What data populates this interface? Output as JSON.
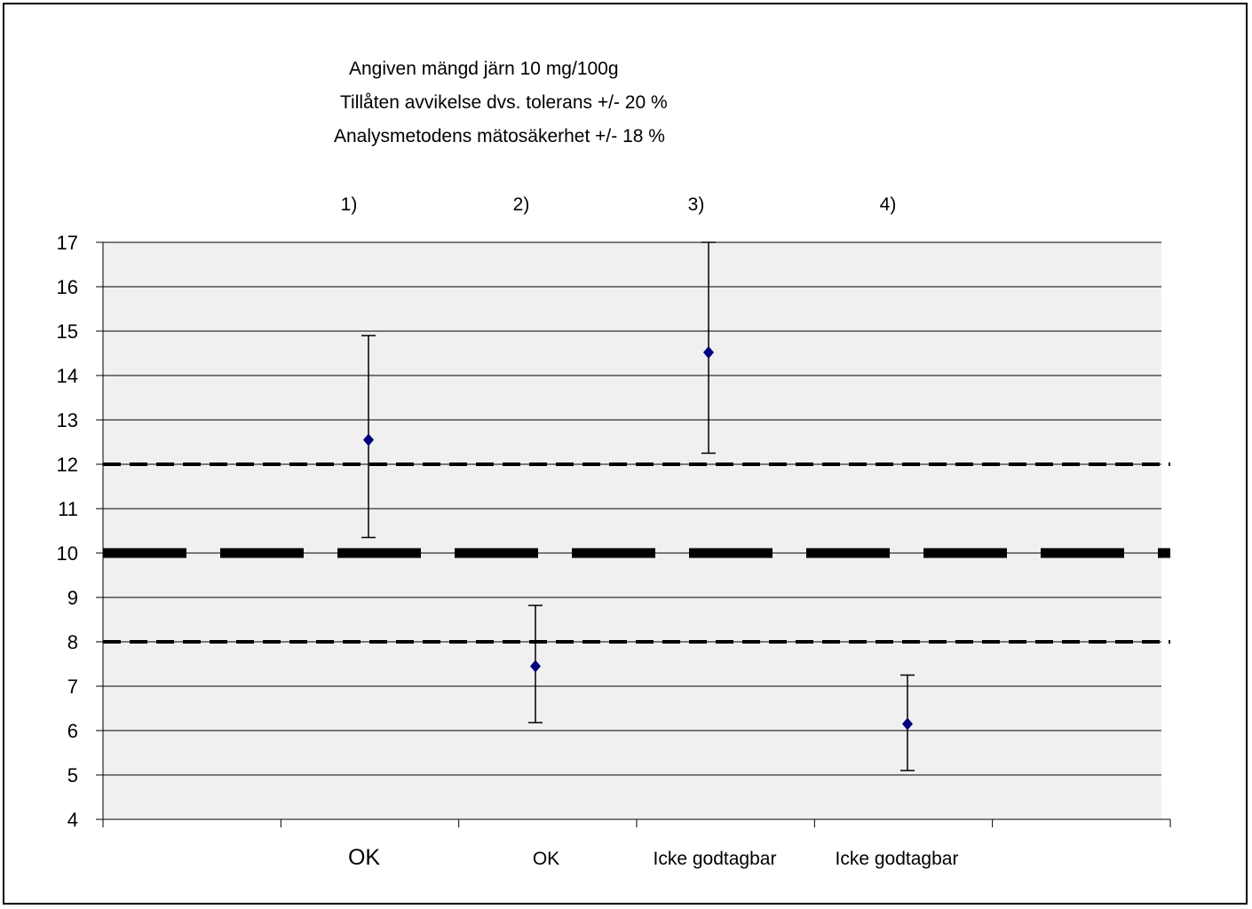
{
  "header": {
    "line1": "Angiven mängd järn 10 mg/100g",
    "line2": "Tillåten avvikelse dvs. tolerans +/- 20 %",
    "line3": "Analysmetodens mätosäkerhet +/- 18 %"
  },
  "chart_data": {
    "type": "scatter",
    "title": "",
    "xlabel": "",
    "ylabel": "",
    "ylim": [
      4,
      17
    ],
    "yticks": [
      4,
      5,
      6,
      7,
      8,
      9,
      10,
      11,
      12,
      13,
      14,
      15,
      16,
      17
    ],
    "grid": true,
    "plot_background": "#f0f0f0",
    "marker_color": "#00007f",
    "points": [
      {
        "label": "1)",
        "value": 12.55,
        "err_low": 10.35,
        "err_high": 14.9,
        "verdict": "OK"
      },
      {
        "label": "2)",
        "value": 7.45,
        "err_low": 6.18,
        "err_high": 8.82,
        "verdict": "OK"
      },
      {
        "label": "3)",
        "value": 14.52,
        "err_low": 12.25,
        "err_high": 17.0,
        "verdict": "Icke godtagbar"
      },
      {
        "label": "4)",
        "value": 6.15,
        "err_low": 5.1,
        "err_high": 7.25,
        "verdict": "Icke godtagbar"
      }
    ],
    "reference_lines": [
      {
        "name": "nominal",
        "y": 10,
        "style": "long-dash"
      },
      {
        "name": "upper-tolerance",
        "y": 12,
        "style": "dash"
      },
      {
        "name": "lower-tolerance",
        "y": 8,
        "style": "dash"
      }
    ]
  }
}
